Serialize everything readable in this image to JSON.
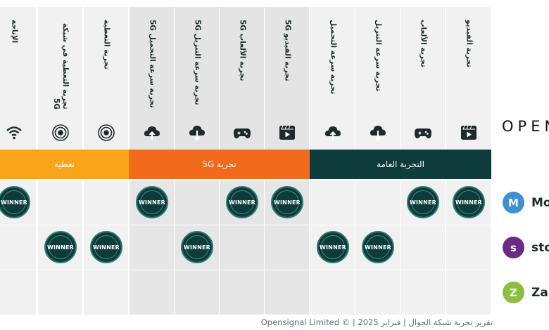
{
  "columns": [
    {
      "label": "الإتاحة",
      "icon": "wifi-icon",
      "group": "coverage"
    },
    {
      "label": "تجربة التغطية في شبكة 5G",
      "icon": "signal-rings-icon",
      "group": "coverage"
    },
    {
      "label": "تجربة التغطية",
      "icon": "signal-rings-icon",
      "group": "coverage"
    },
    {
      "label": "5G تجربة سرعة التحميل",
      "icon": "cloud-upload-icon",
      "group": "5g"
    },
    {
      "label": "5G تجربة سرعة التنزيل",
      "icon": "cloud-download-icon",
      "group": "5g"
    },
    {
      "label": "5G تجربة الألعاب",
      "icon": "gamepad-icon",
      "group": "5g"
    },
    {
      "label": "5G تجربة الفيديو",
      "icon": "video-play-icon",
      "group": "5g"
    },
    {
      "label": "تجربة سرعة التحميل",
      "icon": "cloud-upload-icon",
      "group": "overall"
    },
    {
      "label": "تجربة سرعة التنزيل",
      "icon": "cloud-download-icon",
      "group": "overall"
    },
    {
      "label": "تجربة الألعاب",
      "icon": "gamepad-icon",
      "group": "overall"
    },
    {
      "label": "تجربة الفيديو",
      "icon": "video-play-icon",
      "group": "overall"
    }
  ],
  "categories": {
    "coverage": "تغطية",
    "five_g": "تجربة 5G",
    "overall": "التجربة العامة"
  },
  "winner_label": "WINNER",
  "rows": [
    {
      "operator": "Mo",
      "badge": "M",
      "badge_color": "#3e90d1",
      "winners": [
        0,
        3,
        5,
        6,
        9,
        10
      ]
    },
    {
      "operator": "sto",
      "badge": "s",
      "badge_color": "#6b2b84",
      "winners": [
        1,
        2,
        4,
        7,
        8
      ]
    },
    {
      "operator": "Zai",
      "badge": "Z",
      "badge_color": "#8cbf3f",
      "winners": []
    }
  ],
  "brand": "OPEN",
  "footer": "تقرير تجربة شبكة الجوال | فبراير 2025 | © Opensignal Limited",
  "colors": {
    "coverage": "#f9a51a",
    "five_g": "#f26a1b",
    "overall": "#0e3c3c",
    "header_light": "#f1f1f1",
    "header_dark": "#e4e4e4",
    "cell_light": "#f1f1f1",
    "cell_dark": "#e6e6e6",
    "icon": "#1f2a2a"
  }
}
